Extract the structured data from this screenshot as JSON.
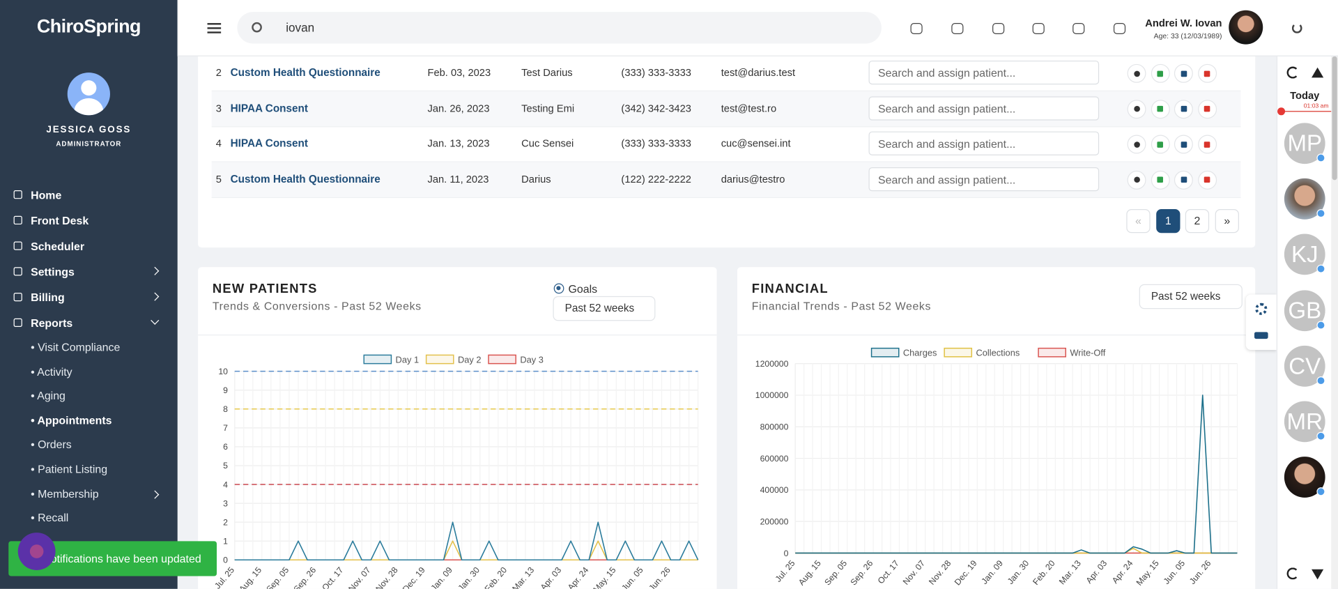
{
  "brand": "ChiroSpring",
  "user": {
    "name": "JESSICA GOSS",
    "role": "ADMINISTRATOR"
  },
  "nav": [
    "Home",
    "Front Desk",
    "Scheduler",
    "Settings",
    "Billing",
    "Reports"
  ],
  "reports_menu": [
    "• Visit Compliance",
    "• Activity",
    "• Aging",
    "• Appointments",
    "• Orders",
    "• Patient Listing",
    "• Membership",
    "• Recall"
  ],
  "toast": "Notifications have been updated",
  "header": {
    "search": "iovan",
    "patient_name": "Andrei W. Iovan",
    "patient_age": "Age: 33 (12/03/1989)"
  },
  "table": {
    "rows": [
      [
        2,
        "Custom Health Questionnaire",
        "Feb. 03, 2023",
        "Test Darius",
        "(333) 333-3333",
        "test@darius.test"
      ],
      [
        3,
        "HIPAA Consent",
        "Jan. 26, 2023",
        "Testing Emi",
        "(342) 342-3423",
        "test@test.ro"
      ],
      [
        4,
        "HIPAA Consent",
        "Jan. 13, 2023",
        "Cuc Sensei",
        "(333) 333-3333",
        "cuc@sensei.int"
      ],
      [
        5,
        "Custom Health Questionnaire",
        "Jan. 11, 2023",
        "Darius",
        "(122) 222-2222",
        "darius@testro"
      ]
    ],
    "assign_placeholder": "Search and assign patient..."
  },
  "pagination": [
    "«",
    "1",
    "2",
    "»"
  ],
  "rail": {
    "today": "Today",
    "time": "01:03 am",
    "avatars": [
      "MP",
      "KJ",
      "GB",
      "CV",
      "MR"
    ]
  },
  "panels": [
    {
      "title": "NEW PATIENTS",
      "subtitle": "Trends & Conversions - Past 52 Weeks",
      "goals": "Goals",
      "range": "Past 52 weeks"
    },
    {
      "title": "FINANCIAL",
      "subtitle": "Financial Trends - Past 52 Weeks",
      "range": "Past 52 weeks"
    }
  ],
  "charts": [
    {
      "type": "line",
      "categories": [
        "Jul. 25",
        null,
        null,
        "Aug. 15",
        null,
        null,
        "Sep. 05",
        null,
        null,
        "Sep. 26",
        null,
        null,
        "Oct. 17",
        null,
        null,
        "Nov. 07",
        null,
        null,
        "Nov. 28",
        null,
        null,
        "Dec. 19",
        null,
        null,
        "Jan. 09",
        null,
        null,
        "Jan. 30",
        null,
        null,
        "Feb. 20",
        null,
        null,
        "Mar. 13",
        null,
        null,
        "Apr. 03",
        null,
        null,
        "Apr. 24",
        null,
        null,
        "May. 15",
        null,
        null,
        "Jun. 05",
        null,
        null,
        "Jun. 26",
        null,
        null,
        null
      ],
      "ylim": [
        0,
        10
      ],
      "yticks": [
        0,
        1,
        2,
        3,
        4,
        5,
        6,
        7,
        8,
        9,
        10
      ],
      "grid": true,
      "series": [
        {
          "name": "Day 1",
          "color": "#2a7b9b",
          "goal": 10,
          "goal_color": "#5b8fc9",
          "values": [
            0,
            0,
            0,
            0,
            0,
            0,
            0,
            1,
            0,
            0,
            0,
            0,
            0,
            1,
            0,
            0,
            1,
            0,
            0,
            0,
            0,
            0,
            0,
            0,
            2,
            0,
            0,
            0,
            1,
            0,
            0,
            0,
            0,
            0,
            0,
            0,
            0,
            1,
            0,
            0,
            2,
            0,
            0,
            1,
            0,
            0,
            0,
            1,
            0,
            0,
            1,
            0
          ]
        },
        {
          "name": "Day 2",
          "color": "#e3c04a",
          "goal": 8,
          "goal_color": "#e6c84a",
          "values": [
            0,
            0,
            0,
            0,
            0,
            0,
            0,
            0,
            0,
            0,
            0,
            0,
            0,
            0,
            0,
            0,
            0,
            0,
            0,
            0,
            0,
            0,
            0,
            0,
            1,
            0,
            0,
            0,
            0,
            0,
            0,
            0,
            0,
            0,
            0,
            0,
            0,
            0,
            0,
            0,
            1,
            0,
            0,
            0,
            0,
            0,
            0,
            0,
            0,
            0,
            0,
            0
          ]
        },
        {
          "name": "Day 3",
          "color": "#d9534f",
          "goal": 4,
          "goal_color": "#c9474f",
          "values": [
            0,
            0,
            0,
            0,
            0,
            0,
            0,
            0,
            0,
            0,
            0,
            0,
            0,
            0,
            0,
            0,
            0,
            0,
            0,
            0,
            0,
            0,
            0,
            0,
            0,
            0,
            0,
            0,
            0,
            0,
            0,
            0,
            0,
            0,
            0,
            0,
            0,
            0,
            0,
            0,
            0,
            0,
            0,
            0,
            0,
            0,
            0,
            0,
            0,
            0,
            0,
            0
          ]
        }
      ]
    },
    {
      "type": "line",
      "categories": [
        "Jul. 25",
        null,
        null,
        "Aug. 15",
        null,
        null,
        "Sep. 05",
        null,
        null,
        "Sep. 26",
        null,
        null,
        "Oct. 17",
        null,
        null,
        "Nov. 07",
        null,
        null,
        "Nov. 28",
        null,
        null,
        "Dec. 19",
        null,
        null,
        "Jan. 09",
        null,
        null,
        "Jan. 30",
        null,
        null,
        "Feb. 20",
        null,
        null,
        "Mar. 13",
        null,
        null,
        "Apr. 03",
        null,
        null,
        "Apr. 24",
        null,
        null,
        "May. 15",
        null,
        null,
        "Jun. 05",
        null,
        null,
        "Jun. 26",
        null,
        null,
        null
      ],
      "ylim": [
        0,
        1200000
      ],
      "yticks": [
        0,
        200000,
        400000,
        600000,
        800000,
        1000000,
        1200000
      ],
      "grid": true,
      "series": [
        {
          "name": "Charges",
          "color": "#1b6f8a",
          "values": [
            0,
            0,
            0,
            0,
            0,
            0,
            0,
            0,
            0,
            0,
            0,
            0,
            0,
            0,
            0,
            0,
            0,
            0,
            0,
            0,
            0,
            0,
            0,
            0,
            0,
            0,
            0,
            0,
            0,
            0,
            0,
            0,
            0,
            20000,
            0,
            0,
            0,
            0,
            0,
            40000,
            25000,
            0,
            0,
            0,
            15000,
            0,
            0,
            1000000,
            0,
            0,
            0,
            0
          ]
        },
        {
          "name": "Collections",
          "color": "#e0c040",
          "values": [
            0,
            0,
            0,
            0,
            0,
            0,
            0,
            0,
            0,
            0,
            0,
            0,
            0,
            0,
            0,
            0,
            0,
            0,
            0,
            0,
            0,
            0,
            0,
            0,
            0,
            0,
            0,
            0,
            0,
            0,
            0,
            0,
            0,
            0,
            0,
            0,
            0,
            0,
            0,
            30000,
            0,
            0,
            0,
            0,
            0,
            0,
            0,
            0,
            0,
            0,
            0,
            0
          ]
        },
        {
          "name": "Write-Off",
          "color": "#d9534f",
          "values": [
            0,
            0,
            0,
            0,
            0,
            0,
            0,
            0,
            0,
            0,
            0,
            0,
            0,
            0,
            0,
            0,
            0,
            0,
            0,
            0,
            0,
            0,
            0,
            0,
            0,
            0,
            0,
            0,
            0,
            0,
            0,
            0,
            0,
            0,
            0,
            0,
            0,
            0,
            0,
            0,
            0,
            0,
            0,
            0,
            0,
            0,
            0,
            0,
            0,
            0,
            0,
            0
          ]
        }
      ]
    }
  ]
}
